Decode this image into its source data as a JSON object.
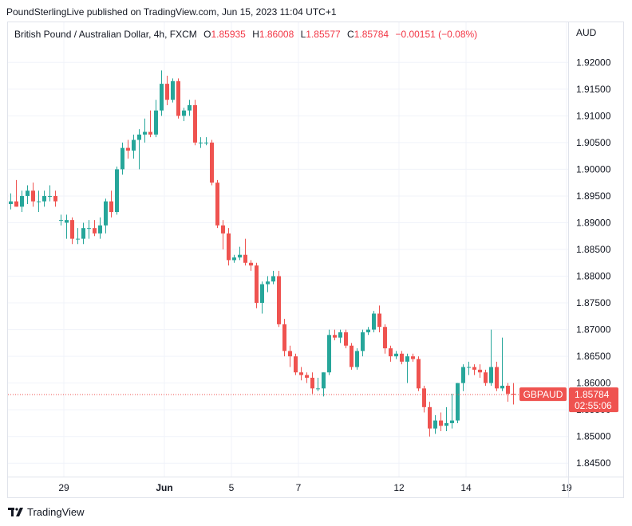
{
  "header": {
    "publish_text": "PoundSterlingLive published on TradingView.com, Jun 15, 2023 11:04 UTC+1",
    "symbol": "British Pound / Australian Dollar, 4h, FXCM",
    "open_label": "O",
    "open": "1.85935",
    "high_label": "H",
    "high": "1.86008",
    "low_label": "L",
    "low": "1.85577",
    "close_label": "C",
    "close": "1.85784",
    "change": "−0.00151 (−0.08%)",
    "currency": "AUD"
  },
  "chart_data": {
    "type": "candlestick",
    "ylim": [
      1.8425,
      1.9275
    ],
    "y_ticks": [
      "1.92000",
      "1.91500",
      "1.91000",
      "1.90500",
      "1.90000",
      "1.89500",
      "1.89000",
      "1.88500",
      "1.88000",
      "1.87500",
      "1.87000",
      "1.86500",
      "1.86000",
      "1.85500",
      "1.85000",
      "1.84500"
    ],
    "x_ticks": [
      {
        "label": "29",
        "index": 9.5
      },
      {
        "label": "Jun",
        "index": 27.5
      },
      {
        "label": "5",
        "index": 39.5
      },
      {
        "label": "7",
        "index": 51.5
      },
      {
        "label": "12",
        "index": 69.5
      },
      {
        "label": "14",
        "index": 81.5
      },
      {
        "label": "19",
        "index": 99.5
      }
    ],
    "last_price": {
      "symbol": "GBPAUD",
      "price": "1.85784",
      "countdown": "02:55:06",
      "value": 1.85784
    },
    "up_color": "#26a69a",
    "down_color": "#ef5350",
    "candles": [
      [
        1.8935,
        1.8955,
        1.8925,
        1.894
      ],
      [
        1.894,
        1.898,
        1.893,
        1.893
      ],
      [
        1.893,
        1.896,
        1.892,
        1.895
      ],
      [
        1.895,
        1.897,
        1.8935,
        1.896
      ],
      [
        1.896,
        1.8975,
        1.893,
        1.894
      ],
      [
        1.894,
        1.896,
        1.892,
        1.894
      ],
      [
        1.894,
        1.896,
        1.893,
        1.895
      ],
      [
        1.895,
        1.897,
        1.894,
        1.895
      ],
      [
        1.895,
        1.896,
        1.893,
        1.894
      ],
      [
        1.8905,
        1.8915,
        1.8895,
        1.8905
      ],
      [
        1.89,
        1.8915,
        1.887,
        1.8905
      ],
      [
        1.8905,
        1.891,
        1.886,
        1.887
      ],
      [
        1.887,
        1.889,
        1.886,
        1.887
      ],
      [
        1.887,
        1.89,
        1.886,
        1.889
      ],
      [
        1.889,
        1.8905,
        1.887,
        1.889
      ],
      [
        1.889,
        1.8905,
        1.8875,
        1.888
      ],
      [
        1.888,
        1.891,
        1.887,
        1.8895
      ],
      [
        1.8895,
        1.8945,
        1.888,
        1.894
      ],
      [
        1.894,
        1.896,
        1.891,
        1.892
      ],
      [
        1.892,
        1.9005,
        1.8915,
        1.9
      ],
      [
        1.9,
        1.905,
        1.899,
        1.904
      ],
      [
        1.904,
        1.9055,
        1.902,
        1.9035
      ],
      [
        1.9035,
        1.9065,
        1.902,
        1.9055
      ],
      [
        1.9055,
        1.9075,
        1.9,
        1.9065
      ],
      [
        1.9065,
        1.9095,
        1.905,
        1.907
      ],
      [
        1.907,
        1.911,
        1.906,
        1.9065
      ],
      [
        1.9065,
        1.913,
        1.906,
        1.911
      ],
      [
        1.911,
        1.9185,
        1.91,
        1.916
      ],
      [
        1.916,
        1.9175,
        1.912,
        1.913
      ],
      [
        1.913,
        1.917,
        1.9125,
        1.9165
      ],
      [
        1.9165,
        1.917,
        1.9095,
        1.91
      ],
      [
        1.91,
        1.9115,
        1.909,
        1.911
      ],
      [
        1.911,
        1.913,
        1.91,
        1.912
      ],
      [
        1.912,
        1.913,
        1.9045,
        1.905
      ],
      [
        1.905,
        1.906,
        1.904,
        1.905
      ],
      [
        1.905,
        1.906,
        1.9045,
        1.905
      ],
      [
        1.905,
        1.9055,
        1.897,
        1.8975
      ],
      [
        1.8975,
        1.898,
        1.889,
        1.8895
      ],
      [
        1.8895,
        1.8905,
        1.885,
        1.888
      ],
      [
        1.888,
        1.889,
        1.882,
        1.883
      ],
      [
        1.883,
        1.884,
        1.8825,
        1.8835
      ],
      [
        1.8835,
        1.8855,
        1.883,
        1.884
      ],
      [
        1.884,
        1.887,
        1.882,
        1.8825
      ],
      [
        1.8825,
        1.883,
        1.881,
        1.882
      ],
      [
        1.882,
        1.8825,
        1.874,
        1.875
      ],
      [
        1.875,
        1.879,
        1.873,
        1.8785
      ],
      [
        1.8785,
        1.88,
        1.877,
        1.879
      ],
      [
        1.879,
        1.881,
        1.8785,
        1.88
      ],
      [
        1.88,
        1.881,
        1.8705,
        1.871
      ],
      [
        1.871,
        1.872,
        1.865,
        1.866
      ],
      [
        1.866,
        1.867,
        1.863,
        1.865
      ],
      [
        1.865,
        1.8655,
        1.8615,
        1.862
      ],
      [
        1.862,
        1.863,
        1.8605,
        1.8615
      ],
      [
        1.8615,
        1.862,
        1.86,
        1.861
      ],
      [
        1.861,
        1.862,
        1.858,
        1.859
      ],
      [
        1.859,
        1.861,
        1.8585,
        1.859
      ],
      [
        1.859,
        1.862,
        1.8575,
        1.862
      ],
      [
        1.862,
        1.87,
        1.8615,
        1.869
      ],
      [
        1.869,
        1.87,
        1.868,
        1.8685
      ],
      [
        1.8685,
        1.87,
        1.8675,
        1.8695
      ],
      [
        1.8695,
        1.87,
        1.8665,
        1.867
      ],
      [
        1.867,
        1.8675,
        1.8625,
        1.863
      ],
      [
        1.863,
        1.8665,
        1.8625,
        1.866
      ],
      [
        1.866,
        1.87,
        1.865,
        1.8695
      ],
      [
        1.8695,
        1.8705,
        1.869,
        1.87
      ],
      [
        1.87,
        1.8735,
        1.8695,
        1.873
      ],
      [
        1.873,
        1.8745,
        1.8695,
        1.8705
      ],
      [
        1.8705,
        1.871,
        1.8655,
        1.8665
      ],
      [
        1.8665,
        1.867,
        1.864,
        1.865
      ],
      [
        1.865,
        1.866,
        1.8645,
        1.8655
      ],
      [
        1.8655,
        1.866,
        1.8635,
        1.864
      ],
      [
        1.864,
        1.8655,
        1.86,
        1.865
      ],
      [
        1.865,
        1.8655,
        1.864,
        1.8645
      ],
      [
        1.8645,
        1.865,
        1.8585,
        1.859
      ],
      [
        1.859,
        1.8595,
        1.8545,
        1.8555
      ],
      [
        1.8555,
        1.8565,
        1.85,
        1.8515
      ],
      [
        1.8515,
        1.854,
        1.8505,
        1.853
      ],
      [
        1.853,
        1.8545,
        1.851,
        1.852
      ],
      [
        1.852,
        1.8555,
        1.851,
        1.8525
      ],
      [
        1.8525,
        1.858,
        1.8515,
        1.853
      ],
      [
        1.853,
        1.86,
        1.8525,
        1.86
      ],
      [
        1.86,
        1.8635,
        1.8585,
        1.863
      ],
      [
        1.863,
        1.864,
        1.8615,
        1.863
      ],
      [
        1.863,
        1.8635,
        1.8615,
        1.8625
      ],
      [
        1.8625,
        1.8635,
        1.861,
        1.862
      ],
      [
        1.862,
        1.8625,
        1.8595,
        1.86
      ],
      [
        1.86,
        1.87,
        1.8595,
        1.863
      ],
      [
        1.863,
        1.864,
        1.8585,
        1.859
      ],
      [
        1.859,
        1.8685,
        1.8585,
        1.8595
      ],
      [
        1.8595,
        1.86,
        1.8565,
        1.858
      ],
      [
        1.858,
        1.86,
        1.856,
        1.8578
      ]
    ]
  },
  "footer": {
    "brand": "TradingView"
  }
}
